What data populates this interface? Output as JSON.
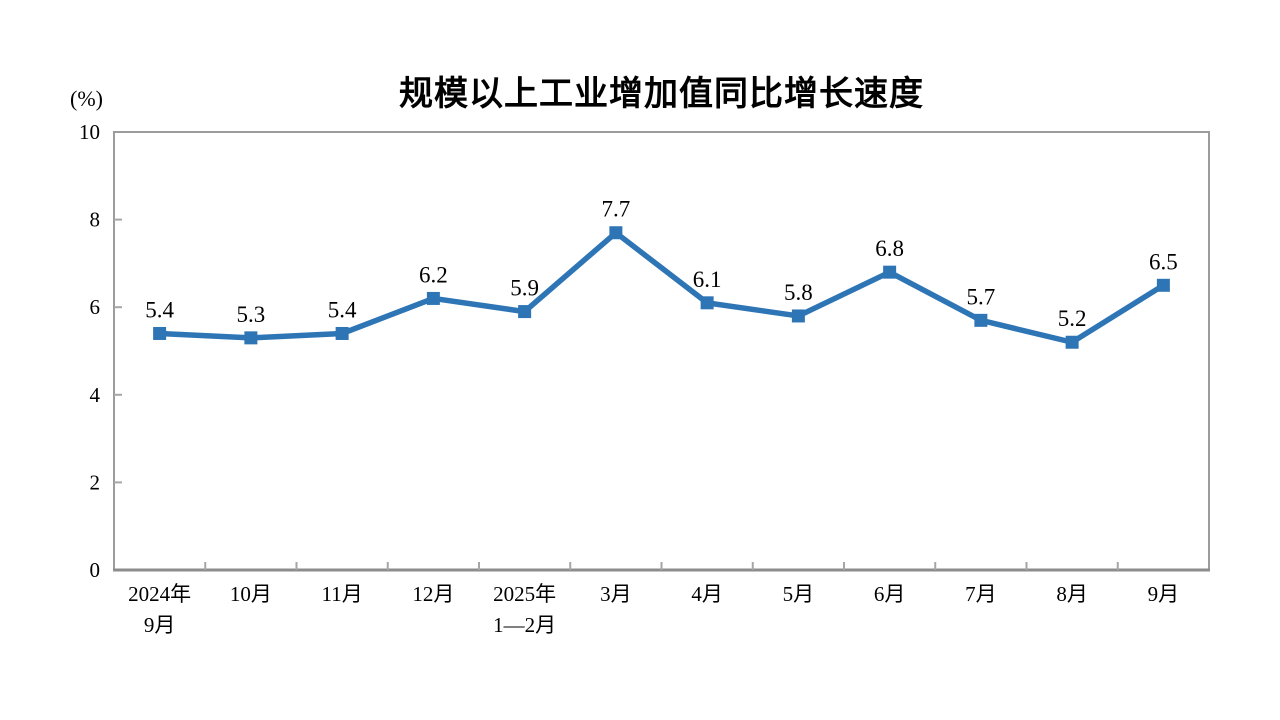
{
  "page": {
    "background": "#ffffff"
  },
  "chart_data": {
    "type": "line",
    "title": "规模以上工业增加值同比增长速度",
    "unit_label": "(%)",
    "categories": [
      [
        "2024年",
        "9月"
      ],
      [
        "10月"
      ],
      [
        "11月"
      ],
      [
        "12月"
      ],
      [
        "2025年",
        "1—2月"
      ],
      [
        "3月"
      ],
      [
        "4月"
      ],
      [
        "5月"
      ],
      [
        "6月"
      ],
      [
        "7月"
      ],
      [
        "8月"
      ],
      [
        "9月"
      ]
    ],
    "values": [
      5.4,
      5.3,
      5.4,
      6.2,
      5.9,
      7.7,
      6.1,
      5.8,
      6.8,
      5.7,
      5.2,
      6.5
    ],
    "ylim": [
      0,
      10
    ],
    "yticks": [
      0,
      2,
      4,
      6,
      8,
      10
    ],
    "grid": false,
    "legend": false,
    "data_labels": true,
    "marker": "square",
    "line_color": "#2E75B6",
    "axis_color": "#9c9c9c",
    "axis_bottom_color": "#8c8c8c",
    "tick_mark_color": "#a6a6a6",
    "text_color": "#000000"
  }
}
